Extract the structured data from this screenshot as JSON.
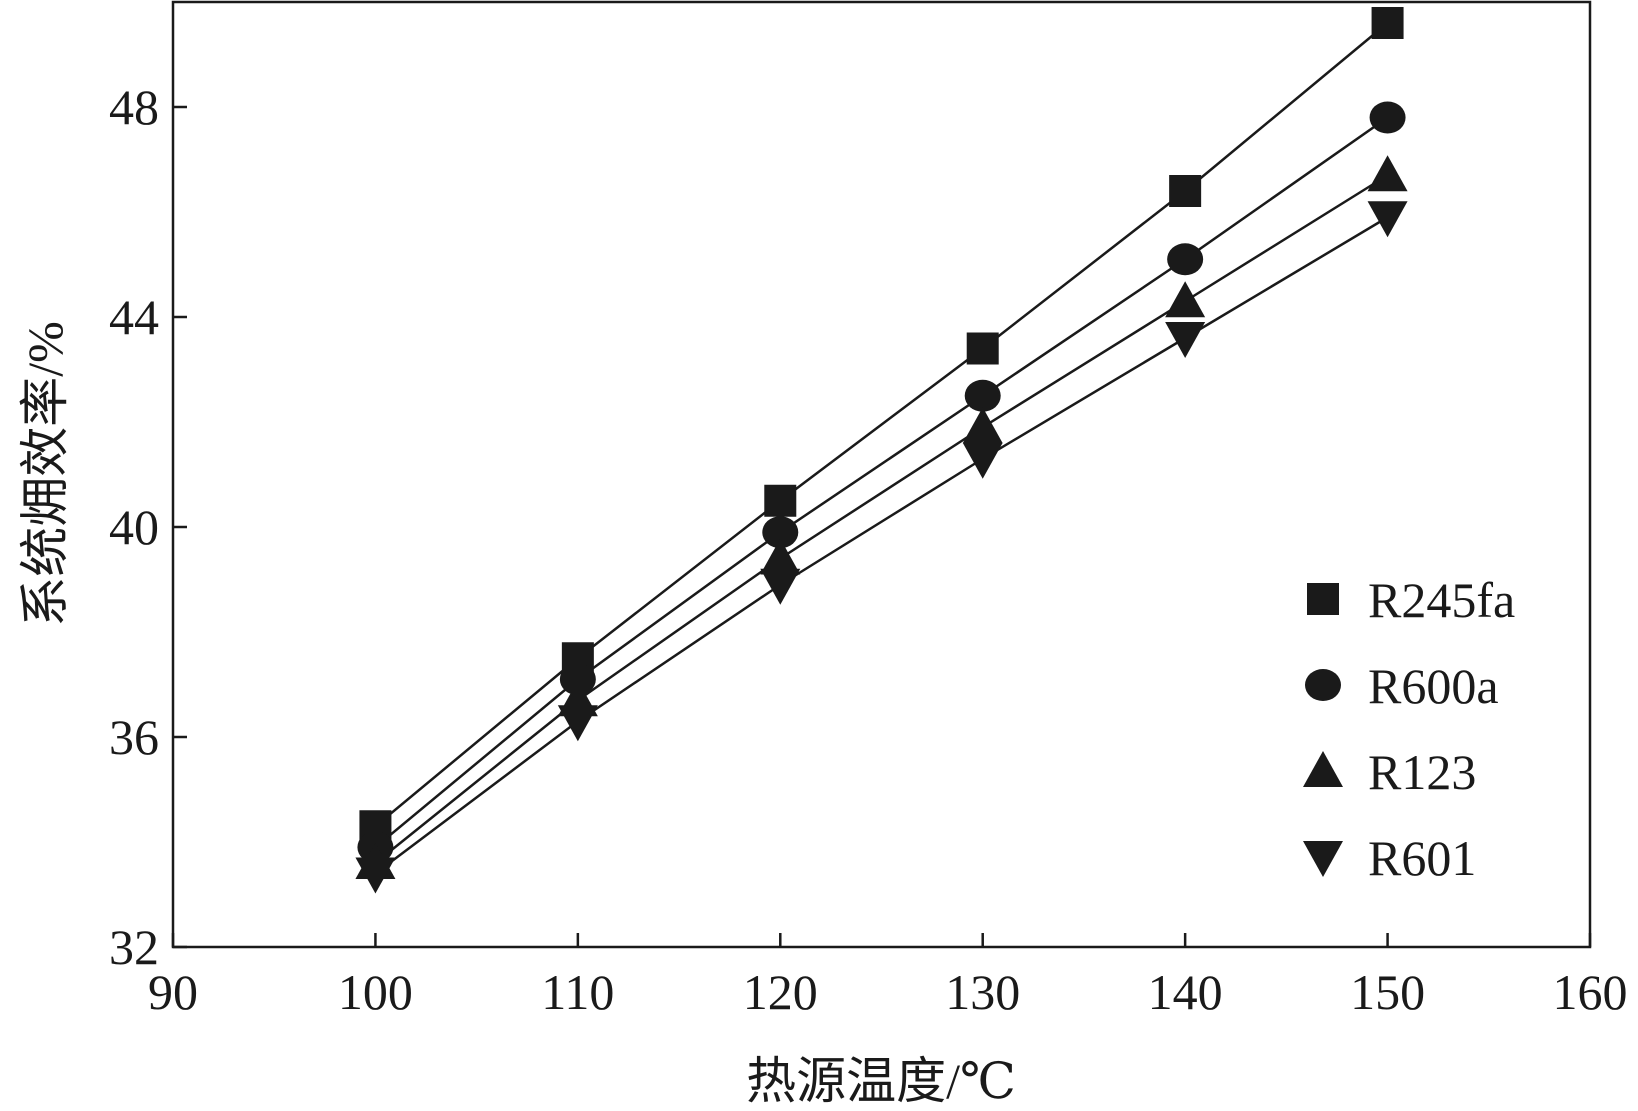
{
  "chart_data": {
    "type": "line",
    "title": "",
    "xlabel": "热源温度/℃",
    "ylabel": "系统㶲效率/%",
    "xlim": [
      90,
      160
    ],
    "ylim": [
      32,
      50
    ],
    "x_ticks": [
      90,
      100,
      110,
      120,
      130,
      140,
      150,
      160
    ],
    "y_ticks": [
      32,
      36,
      40,
      44,
      48
    ],
    "grid": false,
    "legend_position": "bottom-right",
    "x": [
      100,
      110,
      120,
      130,
      140,
      150
    ],
    "series": [
      {
        "name": "R245fa",
        "marker": "square",
        "values": [
          34.3,
          37.5,
          40.5,
          43.4,
          46.4,
          49.6
        ]
      },
      {
        "name": "R600a",
        "marker": "circle",
        "values": [
          33.9,
          37.1,
          39.9,
          42.5,
          45.1,
          47.8
        ]
      },
      {
        "name": "R123",
        "marker": "triangle-up",
        "values": [
          33.6,
          36.7,
          39.4,
          41.9,
          44.3,
          46.7
        ]
      },
      {
        "name": "R601",
        "marker": "triangle-down",
        "values": [
          33.4,
          36.3,
          38.9,
          41.3,
          43.6,
          45.9
        ]
      }
    ],
    "color": "#1a1a1a"
  }
}
